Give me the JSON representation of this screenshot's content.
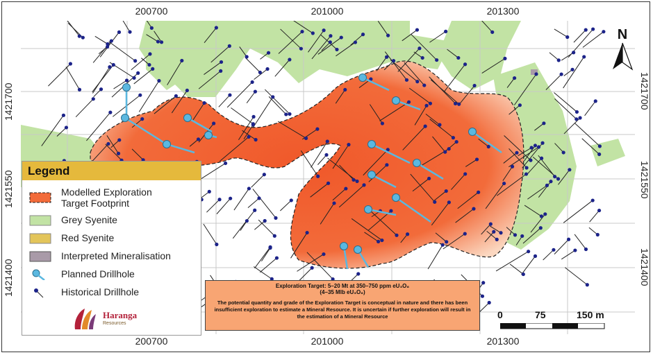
{
  "map": {
    "axes": {
      "x_ticks_top": [
        "200700",
        "201000",
        "201300"
      ],
      "x_ticks_bottom": [
        "200700",
        "201000",
        "201300"
      ],
      "y_ticks_left": [
        "1421700",
        "1421550",
        "1421400"
      ],
      "y_ticks_right": [
        "1421700",
        "1421550",
        "1421400"
      ]
    },
    "north_label": "N",
    "colors": {
      "exploration_target": "#f26b3a",
      "grey_syenite": "#c2e3a4",
      "red_syenite": "#e3c55a",
      "interpreted_mineralisation": "#a99aa8",
      "planned_drillhole": "#5bb8e0",
      "historical_drillhole": "#1c2389",
      "legend_header": "#e5b93c",
      "info_box": "#f8a573"
    }
  },
  "legend": {
    "title": "Legend",
    "items": [
      {
        "label": "Modelled Exploration\nTarget Footprint",
        "symbol": "exploration-footprint"
      },
      {
        "label": "Grey Syenite",
        "symbol": "grey-syenite"
      },
      {
        "label": "Red Syenite",
        "symbol": "red-syenite"
      },
      {
        "label": "Interpreted Mineralisation",
        "symbol": "interpreted-mineralisation"
      },
      {
        "label": "Planned Drillhole",
        "symbol": "planned-drillhole"
      },
      {
        "label": "Historical Drillhole",
        "symbol": "historical-drillhole"
      }
    ],
    "logo_text": "Haranga",
    "logo_subtext": "Resources"
  },
  "info_box": {
    "title": "Exploration Target: 5–20 Mt at 350–750 ppm eU₃O₈",
    "range": "(4–35 Mlb eU₃O₈)",
    "body": "The potential quantity and grade of the Exploration Target is conceptual in nature and there has been insufficient exploration to estimate a Mineral Resource. It is uncertain if further exploration will result in the estimation of a Mineral Resource"
  },
  "scale_bar": {
    "labels": [
      "0",
      "75",
      "150 m"
    ]
  }
}
